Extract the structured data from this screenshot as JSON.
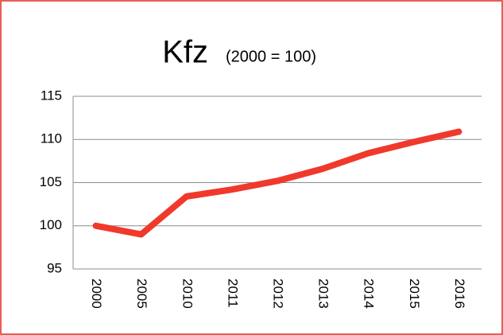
{
  "chart_data": {
    "type": "line",
    "title": "Kfz",
    "subtitle": "(2000 = 100)",
    "categories": [
      "2000",
      "2005",
      "2010",
      "2011",
      "2012",
      "2013",
      "2014",
      "2015",
      "2016"
    ],
    "series": [
      {
        "name": "Kfz",
        "color": "#f0392b",
        "values": [
          100,
          99,
          103.4,
          104.2,
          105.2,
          106.6,
          108.4,
          109.7,
          110.9
        ]
      }
    ],
    "ylim": [
      95,
      115
    ],
    "yticks": [
      95,
      100,
      105,
      110,
      115
    ],
    "grid": true
  }
}
